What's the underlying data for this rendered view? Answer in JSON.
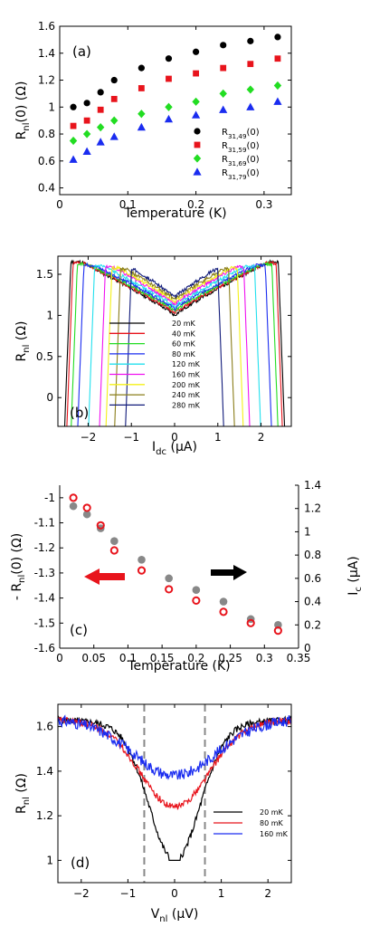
{
  "chart_data": [
    {
      "panel": "(a)",
      "type": "scatter",
      "xlabel": "Temperature (K)",
      "ylabel": "R_nl(0) (Ω)",
      "xlim": [
        0,
        0.34
      ],
      "ylim": [
        0.35,
        1.6
      ],
      "xticks": [
        "0",
        "0.1",
        "0.2",
        "0.3"
      ],
      "yticks": [
        "0.4",
        "0.6",
        "0.8",
        "1",
        "1.2",
        "1.4",
        "1.6"
      ],
      "legend_position": "bottom-right",
      "x": [
        0.02,
        0.04,
        0.06,
        0.08,
        0.12,
        0.16,
        0.2,
        0.24,
        0.28,
        0.32
      ],
      "series": [
        {
          "name": "R31,49(0)",
          "marker": "circle",
          "color": "#000000",
          "values": [
            1.0,
            1.03,
            1.11,
            1.2,
            1.29,
            1.36,
            1.41,
            1.46,
            1.49,
            1.52
          ]
        },
        {
          "name": "R31,59(0)",
          "marker": "square",
          "color": "#e8141c",
          "values": [
            0.86,
            0.9,
            0.98,
            1.06,
            1.14,
            1.21,
            1.25,
            1.29,
            1.32,
            1.36
          ]
        },
        {
          "name": "R31,69(0)",
          "marker": "diamond",
          "color": "#22dd22",
          "values": [
            0.75,
            0.8,
            0.85,
            0.9,
            0.95,
            1.0,
            1.04,
            1.1,
            1.13,
            1.16
          ]
        },
        {
          "name": "R31,79(0)",
          "marker": "triangle",
          "color": "#1a2cf0",
          "values": [
            0.61,
            0.67,
            0.74,
            0.78,
            0.85,
            0.91,
            0.94,
            0.98,
            1.0,
            1.04
          ]
        }
      ],
      "legend_labels": [
        {
          "main": "R",
          "sub": "31,49",
          "tail": "(0)"
        },
        {
          "main": "R",
          "sub": "31,59",
          "tail": "(0)"
        },
        {
          "main": "R",
          "sub": "31,69",
          "tail": "(0)"
        },
        {
          "main": "R",
          "sub": "31,79",
          "tail": "(0)"
        }
      ],
      "ylabel_parts": {
        "main": "R",
        "sub": "nl",
        "tail": "(0) (Ω)"
      }
    },
    {
      "panel": "(b)",
      "type": "line",
      "xlabel_parts": {
        "main": "I",
        "sub": "dc",
        "tail": " (μA)"
      },
      "ylabel_parts": {
        "main": "R",
        "sub": "nl",
        "tail": " (Ω)"
      },
      "xlim": [
        -2.7,
        2.7
      ],
      "ylim": [
        -0.35,
        1.72
      ],
      "xticks": [
        -2,
        -1,
        0,
        1,
        2
      ],
      "xtick_labels": [
        "−2",
        "−1",
        "0",
        "1",
        "2"
      ],
      "yticks": [
        0,
        0.5,
        1,
        1.5
      ],
      "ytick_labels": [
        "0",
        "0.5",
        "1",
        "1.5"
      ],
      "legend_position": "center",
      "series": [
        {
          "name": "20 mK",
          "color": "#000000",
          "Ic": 2.4
        },
        {
          "name": "40 mK",
          "color": "#e8141c",
          "Ic": 2.35
        },
        {
          "name": "60 mK",
          "color": "#22dd22",
          "Ic": 2.25
        },
        {
          "name": "80 mK",
          "color": "#1a2cf0",
          "Ic": 2.1
        },
        {
          "name": "120 mK",
          "color": "#22e0ee",
          "Ic": 1.85
        },
        {
          "name": "160 mK",
          "color": "#f012f0",
          "Ic": 1.6
        },
        {
          "name": "200 mK",
          "color": "#f4f018",
          "Ic": 1.45
        },
        {
          "name": "240 mK",
          "color": "#8a7d1a",
          "Ic": 1.25
        },
        {
          "name": "280 mK",
          "color": "#101a7a",
          "Ic": 1.0
        }
      ]
    },
    {
      "panel": "(c)",
      "type": "scatter",
      "xlabel": "Temperature (K)",
      "ylabel_parts": {
        "main": "- R",
        "sub": "nl",
        "tail": "(0) (Ω)"
      },
      "y2label_parts": {
        "main": "I",
        "sub": "c",
        "tail": " (μA)"
      },
      "xlim": [
        0,
        0.35
      ],
      "ylim": [
        -1.6,
        -0.95
      ],
      "y2lim": [
        0,
        1.4
      ],
      "xticks": [
        "0",
        "0.05",
        "0.1",
        "0.15",
        "0.2",
        "0.25",
        "0.3",
        "0.35"
      ],
      "yticks": [
        "-1",
        "-1.1",
        "-1.2",
        "-1.3",
        "-1.4",
        "-1.5",
        "-1.6"
      ],
      "y2ticks": [
        "0",
        "0.2",
        "0.4",
        "0.6",
        "0.8",
        "1",
        "1.2",
        "1.4"
      ],
      "x": [
        0.02,
        0.04,
        0.06,
        0.08,
        0.12,
        0.16,
        0.2,
        0.24,
        0.28,
        0.32
      ],
      "series": [
        {
          "name": "-Rnl(0)",
          "axis": "left",
          "color": "#e8141c",
          "marker": "open-circle",
          "values": [
            -1.0,
            -1.04,
            -1.11,
            -1.21,
            -1.29,
            -1.365,
            -1.41,
            -1.455,
            -1.5,
            -1.53
          ]
        },
        {
          "name": "Ic",
          "axis": "right",
          "color": "#888888",
          "marker": "filled-circle",
          "values": [
            1.22,
            1.15,
            1.03,
            0.92,
            0.76,
            0.6,
            0.5,
            0.4,
            0.25,
            0.2
          ]
        }
      ],
      "arrows": [
        {
          "direction": "left",
          "color": "#e8141c"
        },
        {
          "direction": "right",
          "color": "#000000"
        }
      ]
    },
    {
      "panel": "(d)",
      "type": "line",
      "xlabel_parts": {
        "main": "V",
        "sub": "nl",
        "tail": " (μV)"
      },
      "ylabel_parts": {
        "main": "R",
        "sub": "nl",
        "tail": " (Ω)"
      },
      "xlim": [
        -2.5,
        2.5
      ],
      "ylim": [
        0.9,
        1.7
      ],
      "xticks": [
        -2,
        -1,
        0,
        1,
        2
      ],
      "xtick_labels": [
        "−2",
        "−1",
        "0",
        "1",
        "2"
      ],
      "yticks": [
        1,
        1.2,
        1.4,
        1.6
      ],
      "ytick_labels": [
        "1",
        "1.2",
        "1.4",
        "1.6"
      ],
      "dashed_lines_x": [
        -0.65,
        0.65
      ],
      "legend_position": "right",
      "series": [
        {
          "name": "20 mK",
          "color": "#000000",
          "min": 1.0,
          "width": 0.9
        },
        {
          "name": "80 mK",
          "color": "#e8141c",
          "min": 1.24,
          "width": 1.1
        },
        {
          "name": "160 mK",
          "color": "#1a2cf0",
          "min": 1.38,
          "width": 1.3
        }
      ]
    }
  ]
}
